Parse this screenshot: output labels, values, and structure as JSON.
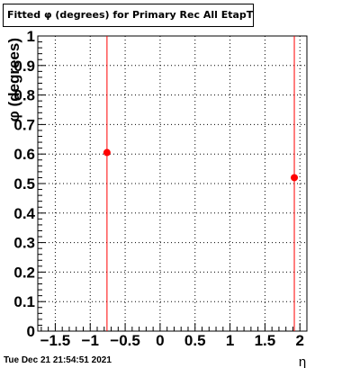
{
  "chart_data": {
    "type": "scatter",
    "title": "Fitted φ (degrees) for Primary Rec All EtapT",
    "xlabel": "η",
    "ylabel": "φ (degrees)",
    "xlim": [
      -1.75,
      2.1
    ],
    "ylim": [
      0,
      1
    ],
    "xticks": [
      -1.5,
      -1,
      -0.5,
      0,
      0.5,
      1,
      1.5,
      2
    ],
    "xtick_labels": [
      "−1.5",
      "−1",
      "−0.5",
      "0",
      "0.5",
      "1",
      "1.5",
      "2"
    ],
    "yticks": [
      0,
      0.1,
      0.2,
      0.3,
      0.4,
      0.5,
      0.6,
      0.7,
      0.8,
      0.9,
      1
    ],
    "ytick_labels": [
      "0",
      "0.1",
      "0.2",
      "0.3",
      "0.4",
      "0.5",
      "0.6",
      "0.7",
      "0.8",
      "0.9",
      "1"
    ],
    "grid": true,
    "series": [
      {
        "color": "#ff0000",
        "points": [
          {
            "x": -0.76,
            "y": 0.605
          },
          {
            "x": 1.92,
            "y": 0.52
          }
        ]
      }
    ]
  },
  "footer": {
    "timestamp": "Tue Dec 21 21:54:51 2021"
  }
}
